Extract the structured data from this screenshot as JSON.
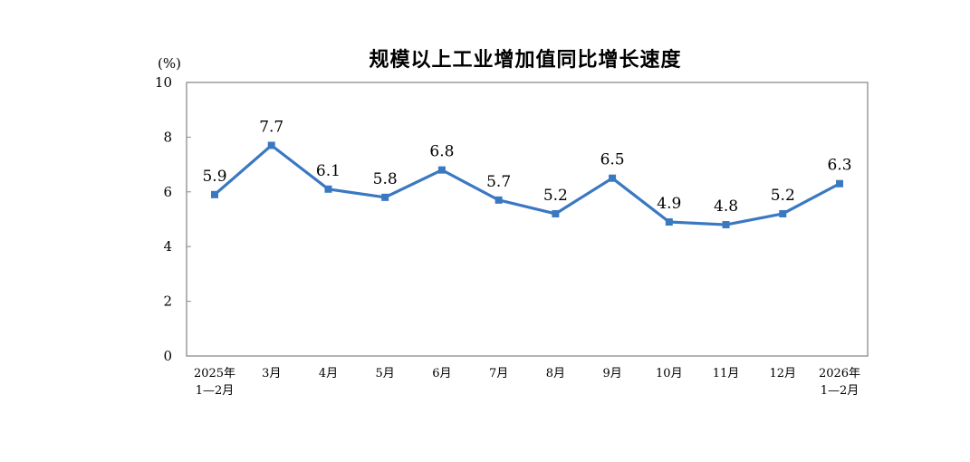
{
  "chart_data": {
    "type": "line",
    "title": "规模以上工业增加值同比增长速度",
    "unit": "(%)",
    "ylim": [
      0,
      10
    ],
    "yticks": [
      "0",
      "2",
      "4",
      "6",
      "8",
      "10"
    ],
    "categories": [
      [
        "2025年",
        "1—2月"
      ],
      [
        "3月"
      ],
      [
        "4月"
      ],
      [
        "5月"
      ],
      [
        "6月"
      ],
      [
        "7月"
      ],
      [
        "8月"
      ],
      [
        "9月"
      ],
      [
        "10月"
      ],
      [
        "11月"
      ],
      [
        "12月"
      ],
      [
        "2026年",
        "1—2月"
      ]
    ],
    "values": [
      5.9,
      7.7,
      6.1,
      5.8,
      6.8,
      5.7,
      5.2,
      6.5,
      4.9,
      4.8,
      5.2,
      6.3
    ],
    "value_labels": [
      "5.9",
      "7.7",
      "6.1",
      "5.8",
      "6.8",
      "5.7",
      "5.2",
      "6.5",
      "4.9",
      "4.8",
      "5.2",
      "6.3"
    ],
    "grid": false,
    "legend": "none",
    "line_color": "#3a78c2",
    "frame_color": "#8c8c8c"
  }
}
